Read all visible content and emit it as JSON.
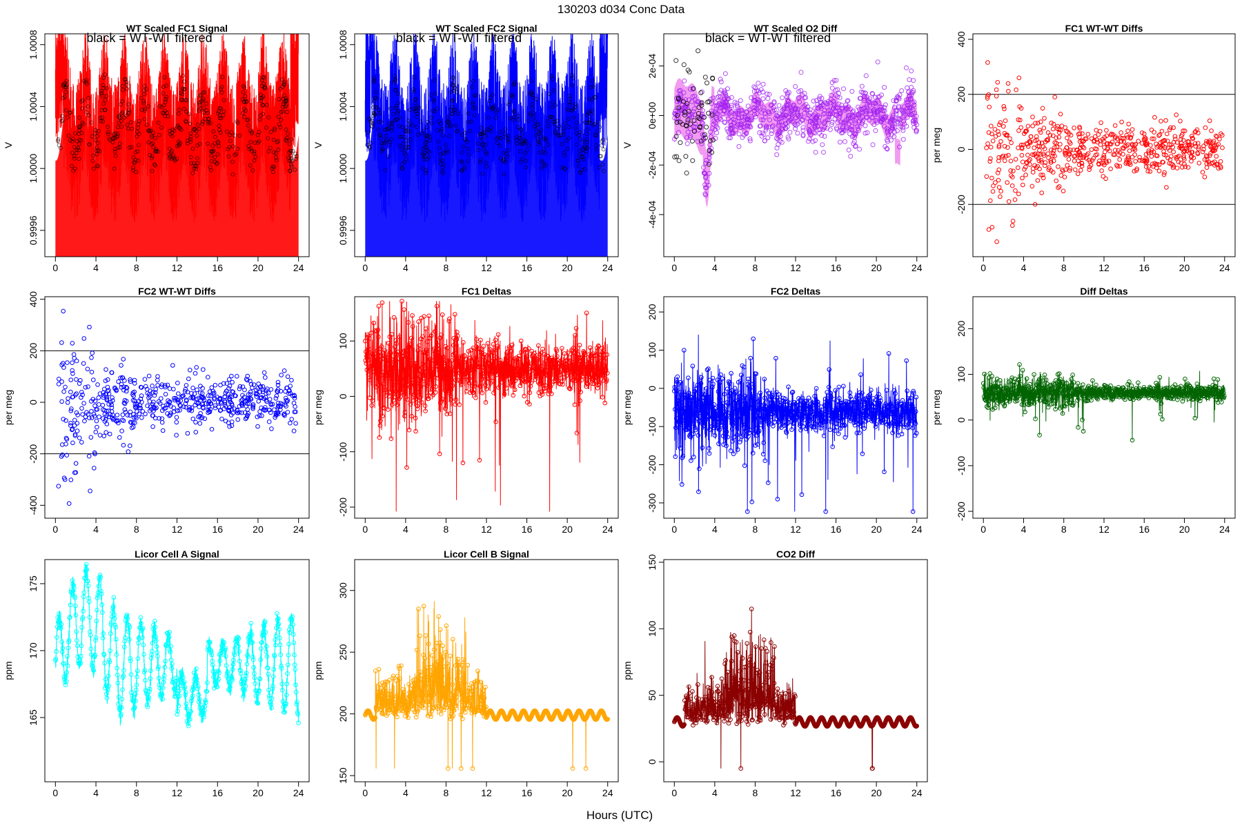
{
  "title": "130203   d034   Conc Data",
  "xaxis_title": "Hours (UTC)",
  "chart_data": [
    {
      "id": "p1",
      "type": "line",
      "title": "WT Scaled FC1 Signal",
      "annotation": "black = WT-WT filtered",
      "ylabel": "V",
      "xlim": [
        0,
        24
      ],
      "ylim": [
        0.99943,
        1.00087
      ],
      "yticks": [
        0.9996,
        1.0,
        1.0004,
        1.0008
      ],
      "ytick_labels": [
        "0.9996",
        "1.0000",
        "1.0004",
        "1.0008"
      ],
      "xticks": [
        0,
        4,
        8,
        12,
        16,
        20,
        24
      ],
      "color": "#ff0000",
      "style": "fc1signal"
    },
    {
      "id": "p2",
      "type": "line",
      "title": "WT Scaled FC2 Signal",
      "annotation": "black = WT-WT filtered",
      "ylabel": "V",
      "xlim": [
        0,
        24
      ],
      "ylim": [
        0.99943,
        1.00087
      ],
      "yticks": [
        0.9996,
        1.0,
        1.0004,
        1.0008
      ],
      "ytick_labels": [
        "0.9996",
        "1.0000",
        "1.0004",
        "1.0008"
      ],
      "xticks": [
        0,
        4,
        8,
        12,
        16,
        20,
        24
      ],
      "color": "#0000ff",
      "style": "fc2signal"
    },
    {
      "id": "p3",
      "type": "line",
      "title": "WT Scaled O2 Diff",
      "annotation": "black = WT-WT filtered",
      "ylabel": "V",
      "xlim": [
        0,
        24
      ],
      "ylim": [
        -0.00057,
        0.00033
      ],
      "yticks": [
        -0.0004,
        -0.0002,
        0,
        0.0002
      ],
      "ytick_labels": [
        "-4e-04",
        "-2e-04",
        "0e+00",
        "2e-04"
      ],
      "xticks": [
        0,
        4,
        8,
        12,
        16,
        20,
        24
      ],
      "color": "#a020f0",
      "fill": "#ee82ee",
      "style": "o2diff"
    },
    {
      "id": "p4",
      "type": "scatter",
      "title": "FC1 WT-WT Diffs",
      "ylabel": "per meg",
      "xlim": [
        0,
        24
      ],
      "ylim": [
        -390,
        420
      ],
      "yticks": [
        -200,
        0,
        200,
        400
      ],
      "ytick_labels": [
        "-200",
        "0",
        "200",
        "400"
      ],
      "xticks": [
        0,
        4,
        8,
        12,
        16,
        20,
        24
      ],
      "hlines": [
        200,
        -200
      ],
      "color": "#ff0000",
      "style": "wtdiff"
    },
    {
      "id": "p5",
      "type": "scatter",
      "title": "FC2 WT-WT Diffs",
      "ylabel": "per meg",
      "xlim": [
        0,
        24
      ],
      "ylim": [
        -450,
        410
      ],
      "yticks": [
        -400,
        -200,
        0,
        200,
        400
      ],
      "ytick_labels": [
        "-400",
        "-200",
        "0",
        "200",
        "400"
      ],
      "xticks": [
        0,
        4,
        8,
        12,
        16,
        20,
        24
      ],
      "hlines": [
        200,
        -200
      ],
      "color": "#0000ff",
      "style": "wtdiff"
    },
    {
      "id": "p6",
      "type": "line",
      "title": "FC1 Deltas",
      "ylabel": "per meg",
      "xlim": [
        0,
        24
      ],
      "ylim": [
        -220,
        180
      ],
      "yticks": [
        -200,
        -100,
        0,
        100
      ],
      "ytick_labels": [
        "-200",
        "-100",
        "0",
        "100"
      ],
      "xticks": [
        0,
        4,
        8,
        12,
        16,
        20,
        24
      ],
      "color": "#ff0000",
      "style": "delta",
      "base": 50,
      "noise": 35
    },
    {
      "id": "p7",
      "type": "line",
      "title": "FC2 Deltas",
      "ylabel": "per meg",
      "xlim": [
        0,
        24
      ],
      "ylim": [
        -340,
        240
      ],
      "yticks": [
        -300,
        -200,
        -100,
        0,
        100,
        200
      ],
      "ytick_labels": [
        "-300",
        "-200",
        "-100",
        "0",
        "100",
        "200"
      ],
      "xticks": [
        0,
        4,
        8,
        12,
        16,
        20,
        24
      ],
      "color": "#0000ff",
      "style": "delta",
      "base": -60,
      "noise": 40
    },
    {
      "id": "p8",
      "type": "line",
      "title": "Diff Deltas",
      "ylabel": "per meg",
      "xlim": [
        0,
        24
      ],
      "ylim": [
        -215,
        270
      ],
      "yticks": [
        -200,
        -100,
        0,
        100,
        200
      ],
      "ytick_labels": [
        "-200",
        "-100",
        "0",
        "100",
        "200"
      ],
      "xticks": [
        0,
        4,
        8,
        12,
        16,
        20,
        24
      ],
      "color": "#006400",
      "style": "delta",
      "base": 60,
      "noise": 12
    },
    {
      "id": "p9",
      "type": "line",
      "title": "Licor Cell A Signal",
      "ylabel": "ppm",
      "xlim": [
        0,
        24
      ],
      "ylim": [
        160.2,
        176.8
      ],
      "yticks": [
        165,
        170,
        175
      ],
      "ytick_labels": [
        "165",
        "170",
        "175"
      ],
      "xticks": [
        0,
        4,
        8,
        12,
        16,
        20,
        24
      ],
      "color": "#00ffff",
      "style": "licorA"
    },
    {
      "id": "p10",
      "type": "line",
      "title": "Licor Cell B Signal",
      "ylabel": "ppm",
      "xlim": [
        0,
        24
      ],
      "ylim": [
        145,
        325
      ],
      "yticks": [
        150,
        200,
        250,
        300
      ],
      "ytick_labels": [
        "150",
        "200",
        "250",
        "300"
      ],
      "xticks": [
        0,
        4,
        8,
        12,
        16,
        20,
        24
      ],
      "color": "#ffa500",
      "style": "licorB",
      "base": 199
    },
    {
      "id": "p11",
      "type": "line",
      "title": "CO2 Diff",
      "ylabel": "ppm",
      "xlim": [
        0,
        24
      ],
      "ylim": [
        -15,
        152
      ],
      "yticks": [
        0,
        50,
        100,
        150
      ],
      "ytick_labels": [
        "0",
        "50",
        "100",
        "150"
      ],
      "xticks": [
        0,
        4,
        8,
        12,
        16,
        20,
        24
      ],
      "color": "#8b0000",
      "style": "licorB",
      "base": 30
    }
  ]
}
